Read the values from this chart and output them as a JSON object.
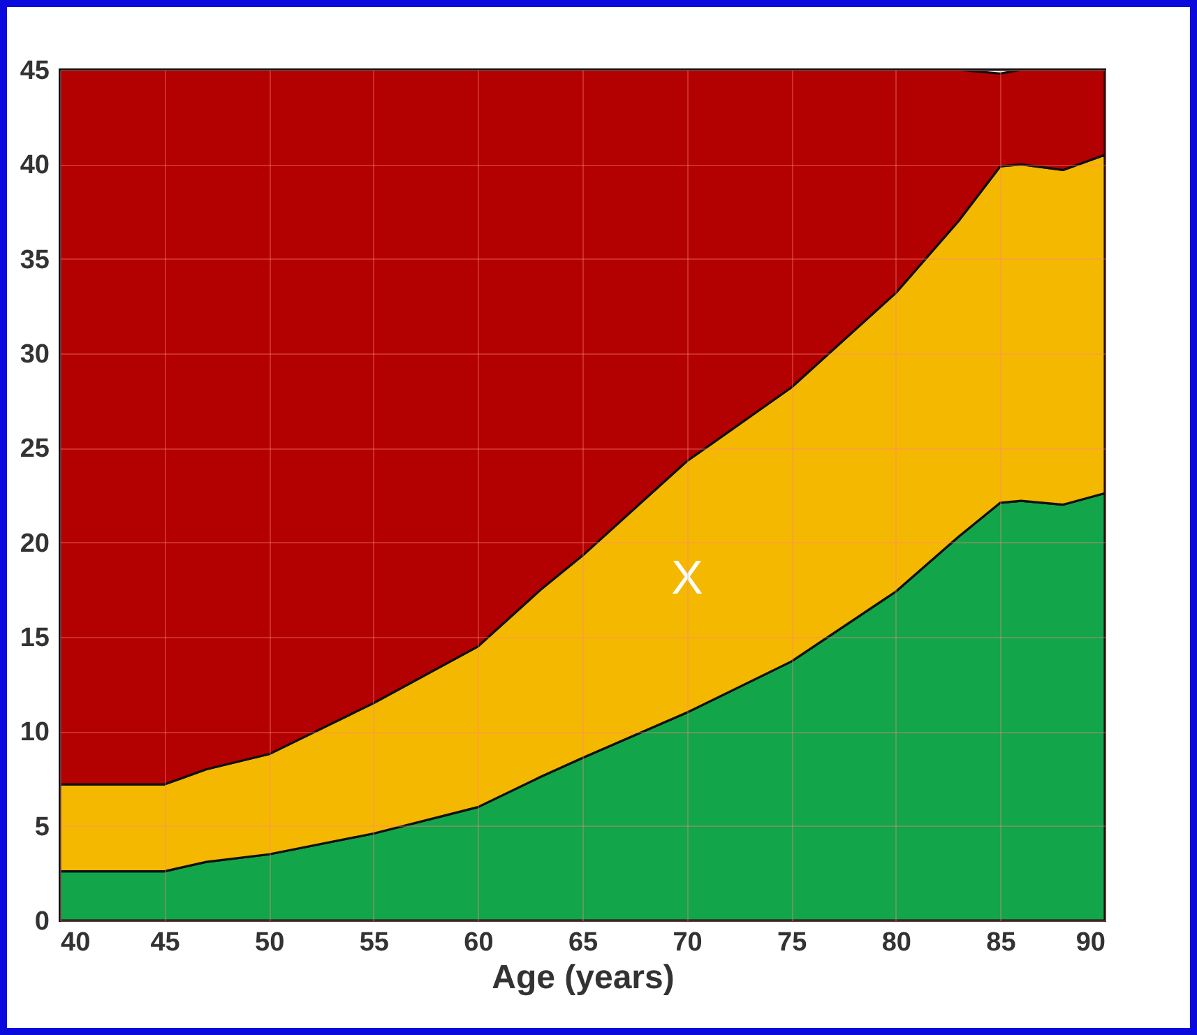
{
  "chart_data": {
    "type": "area",
    "xlabel": "Age (years)",
    "stacked": true,
    "grid": true,
    "x": [
      40,
      45,
      47,
      50,
      55,
      60,
      63,
      65,
      70,
      75,
      80,
      83,
      85,
      86,
      88,
      90
    ],
    "series": [
      {
        "color": "#12a54a",
        "values": [
          2.6,
          2.6,
          3.1,
          3.5,
          4.6,
          6.0,
          7.6,
          8.6,
          11.0,
          13.7,
          17.4,
          20.3,
          22.1,
          22.2,
          22.0,
          22.6
        ]
      },
      {
        "color": "#f5b800",
        "values": [
          4.6,
          4.6,
          4.9,
          5.3,
          6.9,
          8.5,
          9.9,
          10.7,
          13.3,
          14.5,
          15.8,
          16.7,
          17.8,
          17.8,
          17.7,
          17.9
        ]
      },
      {
        "color": "#b30000",
        "values": [
          37.8,
          37.8,
          37.0,
          36.2,
          33.5,
          30.5,
          27.5,
          25.7,
          20.7,
          16.8,
          11.8,
          8.0,
          4.9,
          5.0,
          5.3,
          4.5
        ]
      }
    ],
    "xlim": [
      40,
      90
    ],
    "xticks": [
      40,
      45,
      50,
      55,
      60,
      65,
      70,
      75,
      80,
      85,
      90
    ],
    "ylim": [
      0,
      45
    ],
    "yticks": [
      0,
      5,
      10,
      15,
      20,
      25,
      30,
      35,
      40,
      45
    ],
    "annotations": [
      "X"
    ]
  }
}
